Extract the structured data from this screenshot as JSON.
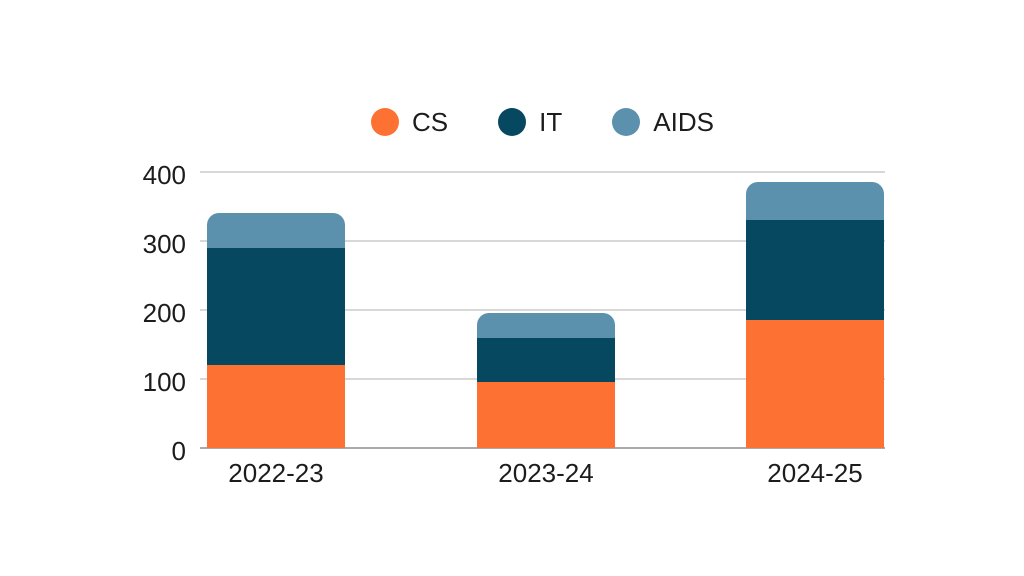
{
  "chart_data": {
    "type": "bar",
    "stacked": true,
    "categories": [
      "2022-23",
      "2023-24",
      "2024-25"
    ],
    "series": [
      {
        "name": "CS",
        "color": "#FD7233",
        "values": [
          120,
          95,
          185
        ]
      },
      {
        "name": "IT",
        "color": "#05485F",
        "values": [
          170,
          65,
          145
        ]
      },
      {
        "name": "AIDS",
        "color": "#5C91AE",
        "values": [
          50,
          35,
          55
        ]
      }
    ],
    "totals": [
      340,
      195,
      385
    ],
    "ylim": [
      0,
      400
    ],
    "yticks": [
      0,
      100,
      200,
      300,
      400
    ],
    "grid": true,
    "legend_position": "top",
    "title": "",
    "xlabel": "",
    "ylabel": ""
  },
  "colors": {
    "gridline": "#d8d8d8",
    "baseline": "#a9a9ae",
    "text": "#1c1c1c",
    "background": "#ffffff"
  }
}
